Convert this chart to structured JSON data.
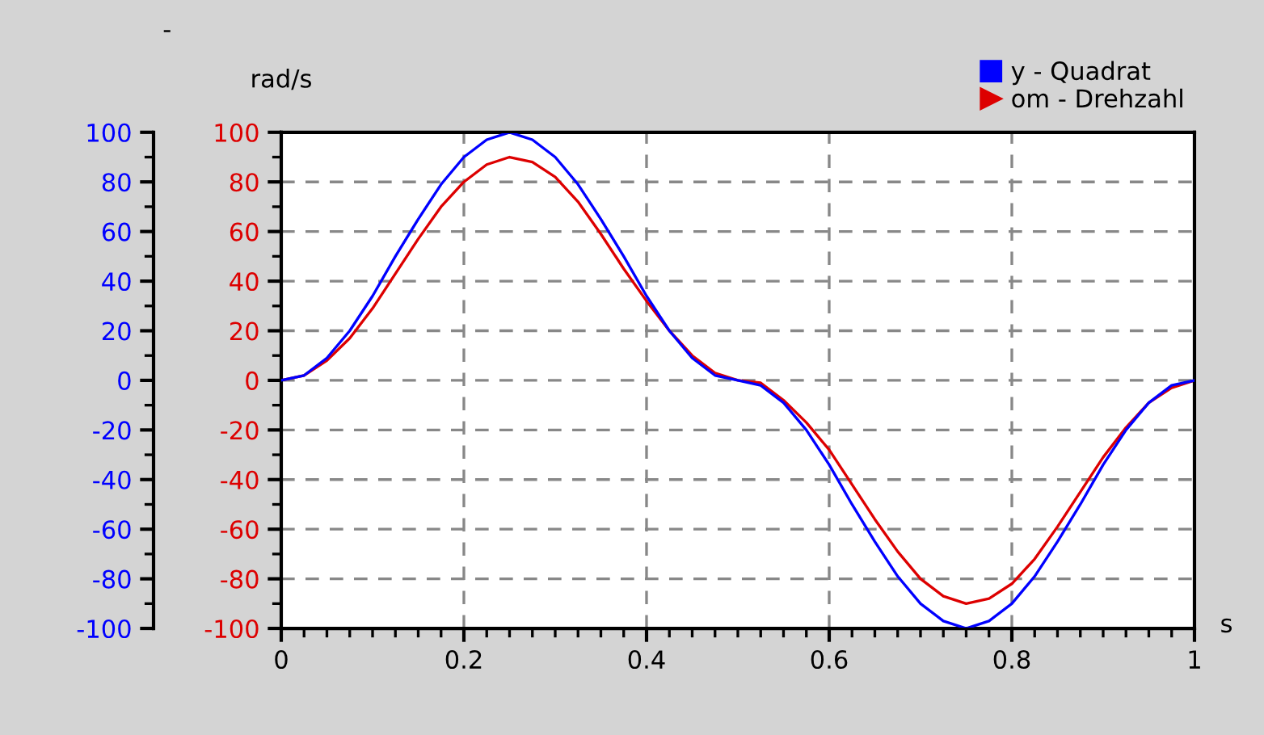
{
  "chart_data": {
    "type": "line",
    "xlabel": "s",
    "ylabel": "rad/s",
    "y2label": "-",
    "xlim": [
      0,
      1
    ],
    "xticks": [
      0,
      0.2,
      0.4,
      0.6,
      0.8,
      1
    ],
    "ylim": [
      -100,
      100
    ],
    "yticks": [
      -100,
      -80,
      -60,
      -40,
      -20,
      0,
      20,
      40,
      60,
      80,
      100
    ],
    "y2lim": [
      -100,
      100
    ],
    "y2ticks": [
      -100,
      -80,
      -60,
      -40,
      -20,
      0,
      20,
      40,
      60,
      80,
      100
    ],
    "grid": true,
    "legend": "top right",
    "line_style": "solid",
    "x": [
      0,
      0.025,
      0.05,
      0.075,
      0.1,
      0.125,
      0.15,
      0.175,
      0.2,
      0.225,
      0.25,
      0.275,
      0.3,
      0.325,
      0.35,
      0.375,
      0.4,
      0.425,
      0.45,
      0.475,
      0.5,
      0.525,
      0.55,
      0.575,
      0.6,
      0.625,
      0.65,
      0.675,
      0.7,
      0.725,
      0.75,
      0.775,
      0.8,
      0.825,
      0.85,
      0.875,
      0.9,
      0.925,
      0.95,
      0.975,
      1
    ],
    "series": [
      {
        "name": "y - Quadrat",
        "color": "#0000ff",
        "axis": "y2",
        "values": [
          0,
          2,
          9,
          20,
          34,
          50,
          65,
          79,
          90,
          97,
          100,
          97,
          90,
          79,
          65,
          50,
          34,
          20,
          9,
          2,
          0,
          -2,
          -9,
          -20,
          -34,
          -50,
          -65,
          -79,
          -90,
          -97,
          -100,
          -97,
          -90,
          -79,
          -65,
          -50,
          -34,
          -20,
          -9,
          -2,
          0
        ]
      },
      {
        "name": "om - Drehzahl",
        "color": "#dd0000",
        "values": [
          0,
          2,
          8,
          17,
          29,
          43,
          57,
          70,
          80,
          87,
          90,
          88,
          82,
          72,
          59,
          45,
          32,
          20,
          10,
          3,
          0,
          -1,
          -8,
          -17,
          -28,
          -42,
          -56,
          -69,
          -80,
          -87,
          -90,
          -88,
          -82,
          -72,
          -59,
          -45,
          -31,
          -19,
          -9,
          -3,
          0
        ]
      }
    ]
  }
}
